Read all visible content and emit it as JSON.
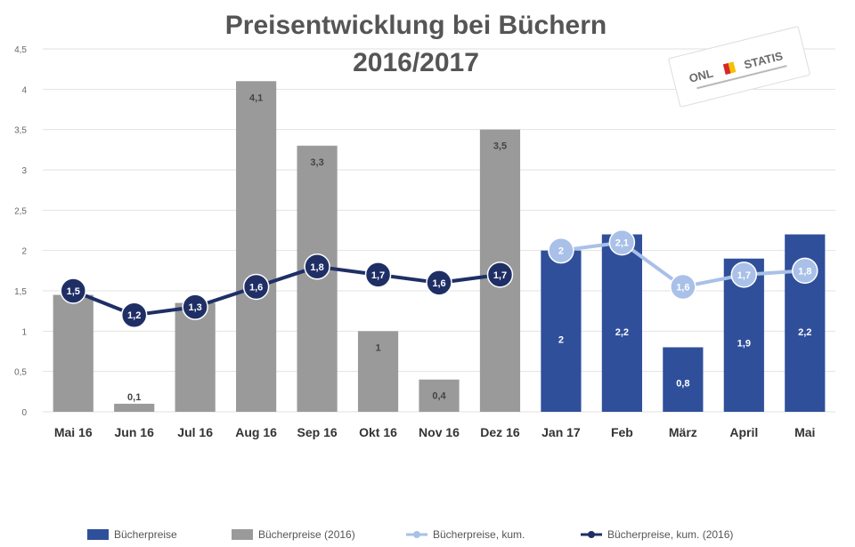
{
  "chart_data": {
    "type": "bar",
    "title_lines": [
      "Preisentwicklung bei Büchern",
      "2016/2017"
    ],
    "categories": [
      "Mai 16",
      "Jun 16",
      "Jul 16",
      "Aug 16",
      "Sep 16",
      "Okt 16",
      "Nov 16",
      "Dez 16",
      "Jan 17",
      "Feb",
      "März",
      "April",
      "Mai"
    ],
    "ylim": [
      0,
      9
    ],
    "yticks": [
      {
        "value": 0,
        "label": "0"
      },
      {
        "value": 1,
        "label": "0,5"
      },
      {
        "value": 2,
        "label": "1"
      },
      {
        "value": 3,
        "label": "1,5"
      },
      {
        "value": 4,
        "label": "2"
      },
      {
        "value": 5,
        "label": "2,5"
      },
      {
        "value": 6,
        "label": "3"
      },
      {
        "value": 7,
        "label": "3,5"
      },
      {
        "value": 8,
        "label": "4"
      },
      {
        "value": 9,
        "label": "4,5"
      }
    ],
    "series": [
      {
        "name": "Bücherpreise",
        "kind": "bar",
        "color": "#2f4f9a",
        "values": [
          null,
          null,
          null,
          null,
          null,
          null,
          null,
          null,
          4.0,
          4.4,
          1.6,
          3.8,
          4.4
        ],
        "labels": [
          "",
          "",
          "",
          "",
          "",
          "",
          "",
          "",
          "2",
          "2,2",
          "0,8",
          "1,9",
          "2,2"
        ]
      },
      {
        "name": "Bücherpreise (2016)",
        "kind": "bar",
        "color": "#9a9a9a",
        "values": [
          2.9,
          0.2,
          2.7,
          8.2,
          6.6,
          2.0,
          0.8,
          7.0,
          null,
          null,
          null,
          null,
          null
        ],
        "labels": [
          "",
          "0,1",
          "",
          "4,1",
          "3,3",
          "1",
          "0,4",
          "3,5",
          "",
          "",
          "",
          "",
          ""
        ]
      },
      {
        "name": "Bücherpreise, kum.",
        "kind": "line",
        "color": "#a9c0e8",
        "values": [
          null,
          null,
          null,
          null,
          null,
          null,
          null,
          null,
          4.0,
          4.2,
          3.1,
          3.4,
          3.5
        ],
        "labels": [
          "",
          "",
          "",
          "",
          "",
          "",
          "",
          "",
          "2",
          "2,1",
          "1,6",
          "1,7",
          "1,8"
        ]
      },
      {
        "name": "Bücherpreise, kum. (2016)",
        "kind": "line",
        "color": "#1f2f66",
        "values": [
          3.0,
          2.4,
          2.6,
          3.1,
          3.6,
          3.4,
          3.2,
          3.4,
          null,
          null,
          null,
          null,
          null
        ],
        "labels": [
          "1,5",
          "1,2",
          "1,3",
          "1,6",
          "1,8",
          "1,7",
          "1,6",
          "1,7",
          "",
          "",
          "",
          "",
          ""
        ]
      }
    ],
    "grid": true,
    "legend_position": "bottom"
  },
  "stamp": {
    "text_left": "ONL",
    "text_right": "STATIS",
    "accent_colors": [
      "#d62828",
      "#f2c200",
      "#2f4f9a"
    ]
  }
}
